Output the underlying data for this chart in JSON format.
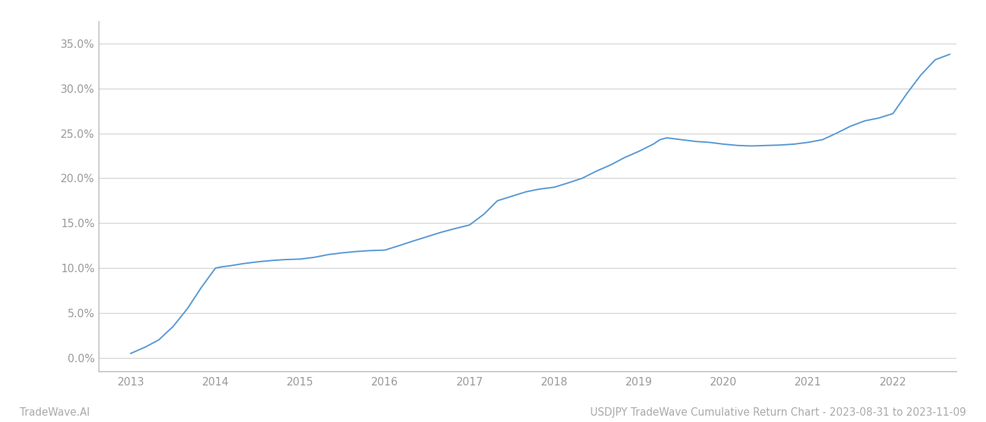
{
  "x_years": [
    2013.0,
    2013.17,
    2013.33,
    2013.5,
    2013.67,
    2013.83,
    2014.0,
    2014.08,
    2014.17,
    2014.33,
    2014.5,
    2014.67,
    2014.83,
    2015.0,
    2015.17,
    2015.33,
    2015.5,
    2015.67,
    2015.83,
    2016.0,
    2016.17,
    2016.33,
    2016.5,
    2016.67,
    2016.83,
    2017.0,
    2017.17,
    2017.33,
    2017.5,
    2017.67,
    2017.83,
    2018.0,
    2018.17,
    2018.33,
    2018.5,
    2018.67,
    2018.83,
    2019.0,
    2019.17,
    2019.25,
    2019.33,
    2019.5,
    2019.67,
    2019.83,
    2020.0,
    2020.17,
    2020.33,
    2020.5,
    2020.67,
    2020.83,
    2021.0,
    2021.17,
    2021.33,
    2021.5,
    2021.67,
    2021.83,
    2022.0,
    2022.17,
    2022.33,
    2022.5,
    2022.67
  ],
  "y_values": [
    0.5,
    1.2,
    2.0,
    3.5,
    5.5,
    7.8,
    10.0,
    10.15,
    10.25,
    10.5,
    10.7,
    10.85,
    10.95,
    11.0,
    11.2,
    11.5,
    11.7,
    11.85,
    11.95,
    12.0,
    12.5,
    13.0,
    13.5,
    14.0,
    14.4,
    14.8,
    16.0,
    17.5,
    18.0,
    18.5,
    18.8,
    19.0,
    19.5,
    20.0,
    20.8,
    21.5,
    22.3,
    23.0,
    23.8,
    24.3,
    24.5,
    24.3,
    24.1,
    24.0,
    23.8,
    23.65,
    23.6,
    23.65,
    23.7,
    23.8,
    24.0,
    24.3,
    25.0,
    25.8,
    26.4,
    26.7,
    27.2,
    29.5,
    31.5,
    33.2,
    33.8
  ],
  "line_color": "#5b9bd5",
  "line_width": 1.5,
  "x_ticks": [
    2013,
    2014,
    2015,
    2016,
    2017,
    2018,
    2019,
    2020,
    2021,
    2022
  ],
  "x_tick_labels": [
    "2013",
    "2014",
    "2015",
    "2016",
    "2017",
    "2018",
    "2019",
    "2020",
    "2021",
    "2022"
  ],
  "y_ticks": [
    0.0,
    5.0,
    10.0,
    15.0,
    20.0,
    25.0,
    30.0,
    35.0
  ],
  "y_tick_labels": [
    "0.0%",
    "5.0%",
    "10.0%",
    "15.0%",
    "20.0%",
    "25.0%",
    "30.0%",
    "35.0%"
  ],
  "xlim": [
    2012.62,
    2022.75
  ],
  "ylim": [
    -1.5,
    37.5
  ],
  "grid_color": "#d0d0d0",
  "background_color": "#ffffff",
  "footer_left": "TradeWave.AI",
  "footer_right": "USDJPY TradeWave Cumulative Return Chart - 2023-08-31 to 2023-11-09",
  "footer_color": "#aaaaaa",
  "footer_fontsize": 10.5,
  "tick_color": "#999999",
  "tick_fontsize": 11
}
